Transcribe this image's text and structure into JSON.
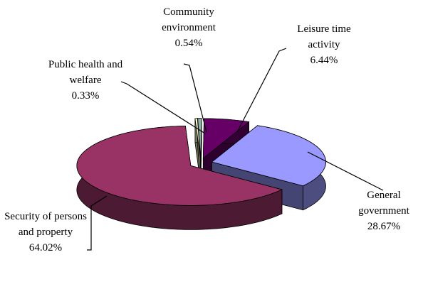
{
  "chart_data": {
    "type": "pie3d",
    "categories": [
      "Community environment",
      "Leisure time activity",
      "General government",
      "Security of persons and property",
      "Public health and welfare"
    ],
    "values": [
      0.54,
      6.44,
      28.67,
      64.02,
      0.33
    ],
    "value_labels": [
      "0.54%",
      "6.44%",
      "28.67%",
      "64.02%",
      "0.33%"
    ],
    "colors": [
      "#8fb3a8",
      "#660066",
      "#9999ff",
      "#993366",
      "#ffffcc"
    ]
  }
}
